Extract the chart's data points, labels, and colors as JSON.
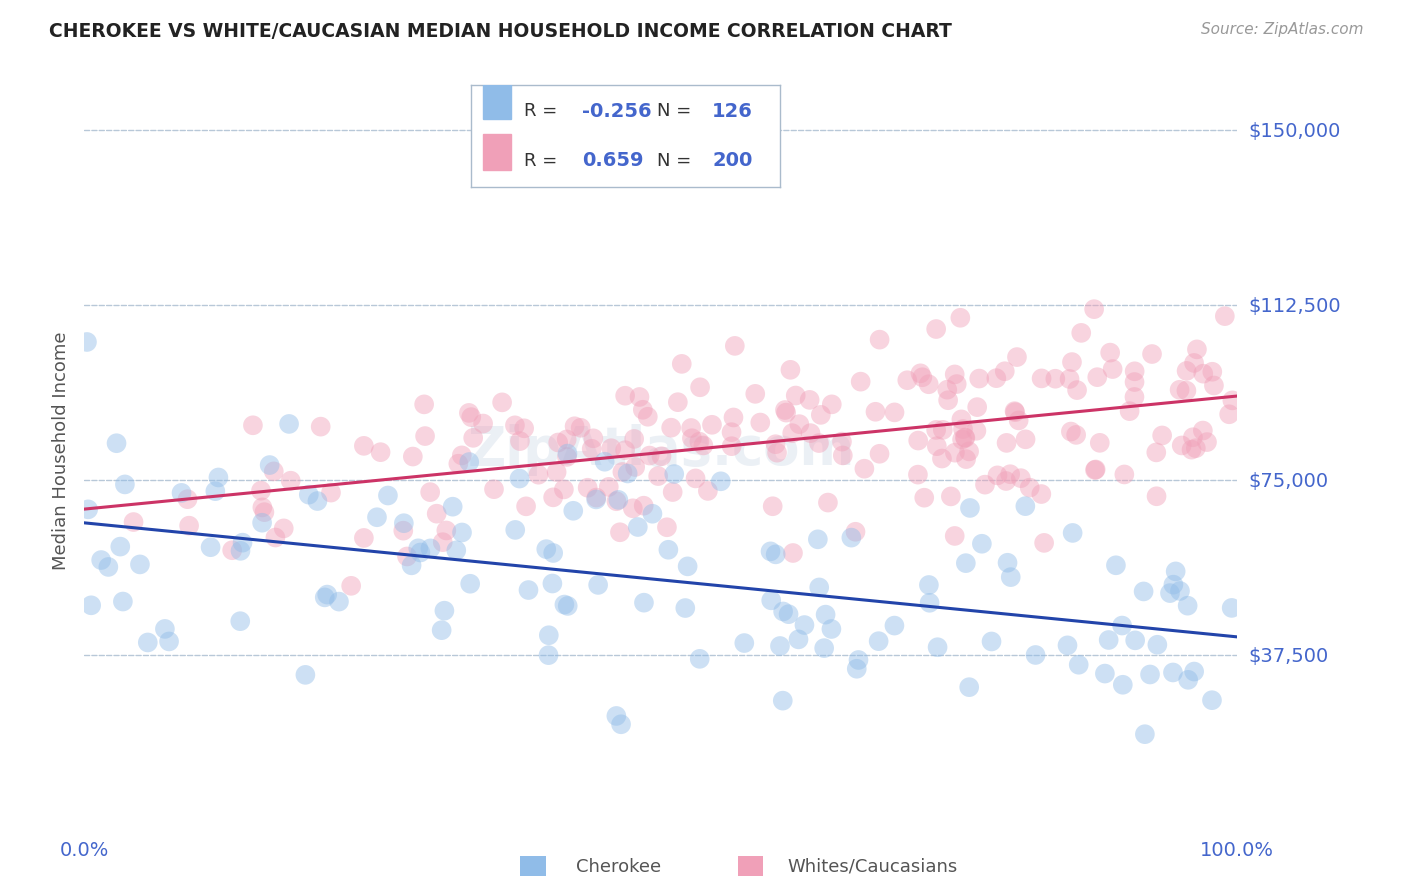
{
  "title": "CHEROKEE VS WHITE/CAUCASIAN MEDIAN HOUSEHOLD INCOME CORRELATION CHART",
  "source": "Source: ZipAtlas.com",
  "ylabel": "Median Household Income",
  "xlim": [
    0,
    1
  ],
  "ylim": [
    0,
    162500
  ],
  "yticks": [
    0,
    37500,
    75000,
    112500,
    150000
  ],
  "bg_color": "#ffffff",
  "grid_color": "#b8c8d8",
  "cherokee_color": "#90bce8",
  "white_color": "#f0a0b8",
  "cherokee_line_color": "#2244aa",
  "white_line_color": "#cc3366",
  "cherokee_R": -0.256,
  "cherokee_N": 126,
  "white_R": 0.659,
  "white_N": 200,
  "title_color": "#222222",
  "axis_label_color": "#4466cc",
  "source_color": "#999999",
  "legend_box_color": "#4466cc",
  "dot_size": 200,
  "dot_alpha": 0.45,
  "cherokee_seed": 12,
  "white_seed": 55,
  "watermark_color": "#c8d4e4",
  "watermark_alpha": 0.35
}
